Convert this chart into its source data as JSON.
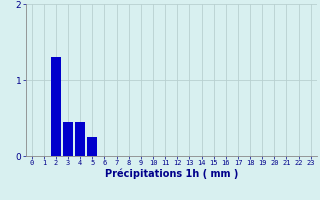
{
  "categories": [
    0,
    1,
    2,
    3,
    4,
    5,
    6,
    7,
    8,
    9,
    10,
    11,
    12,
    13,
    14,
    15,
    16,
    17,
    18,
    19,
    20,
    21,
    22,
    23
  ],
  "values": [
    0,
    0,
    1.3,
    0.45,
    0.45,
    0.25,
    0,
    0,
    0,
    0,
    0,
    0,
    0,
    0,
    0,
    0,
    0,
    0,
    0,
    0,
    0,
    0,
    0,
    0
  ],
  "bar_color": "#0000cc",
  "background_color": "#d8f0f0",
  "grid_color": "#b8d0d0",
  "xlabel": "Précipitations 1h ( mm )",
  "xlabel_color": "#00008b",
  "tick_color": "#00008b",
  "ylim": [
    0,
    2
  ],
  "yticks": [
    0,
    1,
    2
  ],
  "xlim": [
    -0.5,
    23.5
  ],
  "tick_fontsize": 5.0,
  "ylabel_fontsize": 6.5,
  "xlabel_fontsize": 7.0
}
